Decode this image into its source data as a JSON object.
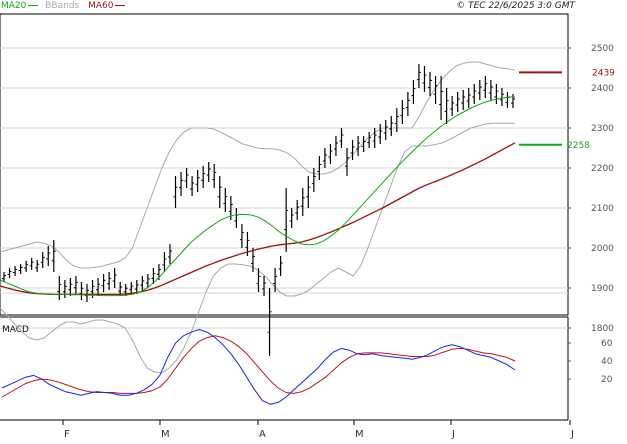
{
  "header": {
    "legend": [
      {
        "label": "MA20",
        "color": "#16a21a"
      },
      {
        "label": "BBands",
        "color": "#a8a8a8"
      },
      {
        "label": "MA60",
        "color": "#9b1010"
      }
    ],
    "copyright": "© TEC 22/6/2025 3:0 GMT"
  },
  "chart_data": [
    {
      "type": "line",
      "subtype": "ohlc-bars",
      "title": "",
      "ylim": [
        1600,
        2600
      ],
      "y_ticks": [
        "2500",
        "2400",
        "2300",
        "2200",
        "2100",
        "2000",
        "1900",
        "1800"
      ],
      "x_ticks": [
        "F",
        "M",
        "A",
        "M",
        "J",
        "J"
      ],
      "grid": true,
      "series": [
        {
          "name": "MA20",
          "color": "#16a21a",
          "values": [
            1920,
            1912,
            1905,
            1897,
            1890,
            1887,
            1885,
            1884,
            1883,
            1884,
            1883,
            1883,
            1882,
            1882,
            1881,
            1881,
            1881,
            1882,
            1884,
            1890,
            1900,
            1915,
            1934,
            1955,
            1975,
            1995,
            2015,
            2030,
            2045,
            2058,
            2070,
            2078,
            2083,
            2084,
            2083,
            2078,
            2068,
            2055,
            2040,
            2028,
            2018,
            2010,
            2008,
            2010,
            2018,
            2030,
            2045,
            2063,
            2083,
            2103,
            2123,
            2143,
            2163,
            2183,
            2203,
            2222,
            2240,
            2258,
            2275,
            2290,
            2305,
            2318,
            2330,
            2340,
            2350,
            2358,
            2365,
            2370,
            2374,
            2377,
            2378
          ]
        },
        {
          "name": "BB upper",
          "color": "#a8a8a8",
          "values": [
            1990,
            1995,
            2000,
            2005,
            2010,
            2015,
            2012,
            2005,
            1990,
            1970,
            1955,
            1950,
            1950,
            1952,
            1955,
            1960,
            1965,
            1975,
            2000,
            2050,
            2100,
            2150,
            2200,
            2240,
            2270,
            2290,
            2300,
            2300,
            2300,
            2298,
            2290,
            2280,
            2270,
            2260,
            2255,
            2250,
            2248,
            2248,
            2245,
            2238,
            2225,
            2205,
            2190,
            2185,
            2185,
            2190,
            2200,
            2215,
            2235,
            2255,
            2275,
            2290,
            2300,
            2300,
            2300,
            2300,
            2300,
            2330,
            2365,
            2395,
            2420,
            2440,
            2455,
            2462,
            2465,
            2465,
            2460,
            2455,
            2450,
            2448,
            2445
          ]
        },
        {
          "name": "BB lower",
          "color": "#a8a8a8",
          "values": [
            1850,
            1830,
            1810,
            1790,
            1775,
            1770,
            1775,
            1790,
            1805,
            1815,
            1815,
            1810,
            1815,
            1820,
            1820,
            1815,
            1810,
            1800,
            1770,
            1730,
            1700,
            1690,
            1688,
            1700,
            1720,
            1750,
            1790,
            1840,
            1890,
            1930,
            1950,
            1960,
            1960,
            1958,
            1955,
            1945,
            1930,
            1910,
            1890,
            1880,
            1880,
            1885,
            1895,
            1910,
            1925,
            1940,
            1950,
            1940,
            1930,
            1955,
            2000,
            2050,
            2100,
            2150,
            2200,
            2240,
            2255,
            2255,
            2255,
            2258,
            2262,
            2270,
            2280,
            2290,
            2300,
            2305,
            2310,
            2312,
            2312,
            2312,
            2312
          ]
        },
        {
          "name": "MA60",
          "color": "#9b1010",
          "values": [
            1905,
            1900,
            1895,
            1891,
            1888,
            1886,
            1885,
            1884,
            1884,
            1884,
            1884,
            1884,
            1884,
            1884,
            1884,
            1884,
            1884,
            1885,
            1887,
            1890,
            1894,
            1900,
            1907,
            1915,
            1923,
            1931,
            1939,
            1947,
            1955,
            1962,
            1969,
            1975,
            1981,
            1987,
            1992,
            1997,
            2001,
            2005,
            2008,
            2010,
            2012,
            2015,
            2020,
            2026,
            2033,
            2040,
            2048,
            2056,
            2064,
            2073,
            2082,
            2091,
            2100,
            2110,
            2120,
            2130,
            2140,
            2150,
            2158,
            2165,
            2172,
            2180,
            2188,
            2196,
            2205,
            2214,
            2223,
            2233,
            2243,
            2253,
            2263
          ]
        }
      ],
      "ohlc": [
        [
          1940,
          1915
        ],
        [
          1950,
          1925
        ],
        [
          1955,
          1930
        ],
        [
          1960,
          1935
        ],
        [
          1968,
          1940
        ],
        [
          1975,
          1945
        ],
        [
          1970,
          1940
        ],
        [
          1990,
          1950
        ],
        [
          2005,
          1955
        ],
        [
          2020,
          1940
        ],
        [
          1930,
          1870
        ],
        [
          1920,
          1875
        ],
        [
          1925,
          1880
        ],
        [
          1930,
          1885
        ],
        [
          1915,
          1870
        ],
        [
          1910,
          1865
        ],
        [
          1920,
          1875
        ],
        [
          1925,
          1880
        ],
        [
          1935,
          1890
        ],
        [
          1940,
          1895
        ],
        [
          1950,
          1900
        ],
        [
          1915,
          1880
        ],
        [
          1910,
          1880
        ],
        [
          1915,
          1885
        ],
        [
          1920,
          1885
        ],
        [
          1930,
          1895
        ],
        [
          1935,
          1900
        ],
        [
          1950,
          1910
        ],
        [
          1960,
          1920
        ],
        [
          1990,
          1940
        ],
        [
          2010,
          1960
        ],
        [
          2180,
          2100
        ],
        [
          2190,
          2130
        ],
        [
          2200,
          2150
        ],
        [
          2180,
          2130
        ],
        [
          2195,
          2140
        ],
        [
          2205,
          2150
        ],
        [
          2215,
          2165
        ],
        [
          2210,
          2150
        ],
        [
          2180,
          2100
        ],
        [
          2150,
          2090
        ],
        [
          2130,
          2070
        ],
        [
          2100,
          2050
        ],
        [
          2060,
          2000
        ],
        [
          2040,
          1980
        ],
        [
          2000,
          1940
        ],
        [
          1950,
          1890
        ],
        [
          1930,
          1880
        ],
        [
          1900,
          1730
        ],
        [
          1950,
          1890
        ],
        [
          1980,
          1930
        ],
        [
          2150,
          1990
        ],
        [
          2100,
          2050
        ],
        [
          2120,
          2070
        ],
        [
          2150,
          2080
        ],
        [
          2180,
          2100
        ],
        [
          2200,
          2140
        ],
        [
          2230,
          2170
        ],
        [
          2250,
          2200
        ],
        [
          2260,
          2210
        ],
        [
          2280,
          2230
        ],
        [
          2300,
          2250
        ],
        [
          2250,
          2180
        ],
        [
          2270,
          2220
        ],
        [
          2280,
          2230
        ],
        [
          2280,
          2240
        ],
        [
          2290,
          2250
        ],
        [
          2300,
          2250
        ],
        [
          2310,
          2260
        ],
        [
          2320,
          2270
        ],
        [
          2330,
          2280
        ],
        [
          2350,
          2290
        ],
        [
          2370,
          2310
        ],
        [
          2390,
          2330
        ],
        [
          2420,
          2360
        ],
        [
          2460,
          2400
        ],
        [
          2455,
          2390
        ],
        [
          2440,
          2380
        ],
        [
          2430,
          2360
        ],
        [
          2430,
          2320
        ],
        [
          2400,
          2310
        ],
        [
          2380,
          2330
        ],
        [
          2390,
          2340
        ],
        [
          2395,
          2345
        ],
        [
          2400,
          2350
        ],
        [
          2410,
          2360
        ],
        [
          2420,
          2370
        ],
        [
          2430,
          2375
        ],
        [
          2420,
          2370
        ],
        [
          2410,
          2360
        ],
        [
          2400,
          2355
        ],
        [
          2390,
          2350
        ],
        [
          2385,
          2350
        ]
      ],
      "annotations": [
        {
          "label": "2439",
          "value": 2439,
          "color": "#9b1010"
        },
        {
          "label": "2258",
          "value": 2258,
          "color": "#16a21a"
        }
      ]
    },
    {
      "type": "line",
      "title": "MACD",
      "ylim": [
        -10,
        90
      ],
      "y_ticks": [
        "60",
        "40",
        "20"
      ],
      "series": [
        {
          "name": "MACD",
          "color": "#1a27d9",
          "values": [
            10,
            14,
            18,
            22,
            24,
            20,
            14,
            10,
            6,
            4,
            2,
            4,
            6,
            5,
            4,
            2,
            2,
            4,
            8,
            14,
            24,
            44,
            60,
            68,
            72,
            75,
            72,
            66,
            58,
            48,
            36,
            22,
            8,
            -4,
            -8,
            -6,
            0,
            8,
            16,
            24,
            32,
            42,
            50,
            54,
            52,
            48,
            47,
            48,
            46,
            45,
            44,
            43,
            42,
            44,
            47,
            52,
            56,
            58,
            56,
            52,
            48,
            46,
            44,
            40,
            36,
            30
          ]
        },
        {
          "name": "Signal",
          "color": "#c0141b",
          "values": [
            0,
            5,
            10,
            15,
            18,
            20,
            19,
            17,
            14,
            11,
            8,
            6,
            5,
            5,
            5,
            4,
            4,
            4,
            5,
            7,
            11,
            20,
            32,
            44,
            54,
            62,
            66,
            68,
            66,
            62,
            56,
            48,
            38,
            28,
            18,
            10,
            5,
            4,
            6,
            10,
            16,
            22,
            30,
            38,
            44,
            48,
            49,
            49,
            49,
            48,
            47,
            46,
            45,
            45,
            45,
            47,
            50,
            53,
            54,
            53,
            51,
            49,
            48,
            46,
            44,
            40
          ]
        }
      ]
    }
  ]
}
